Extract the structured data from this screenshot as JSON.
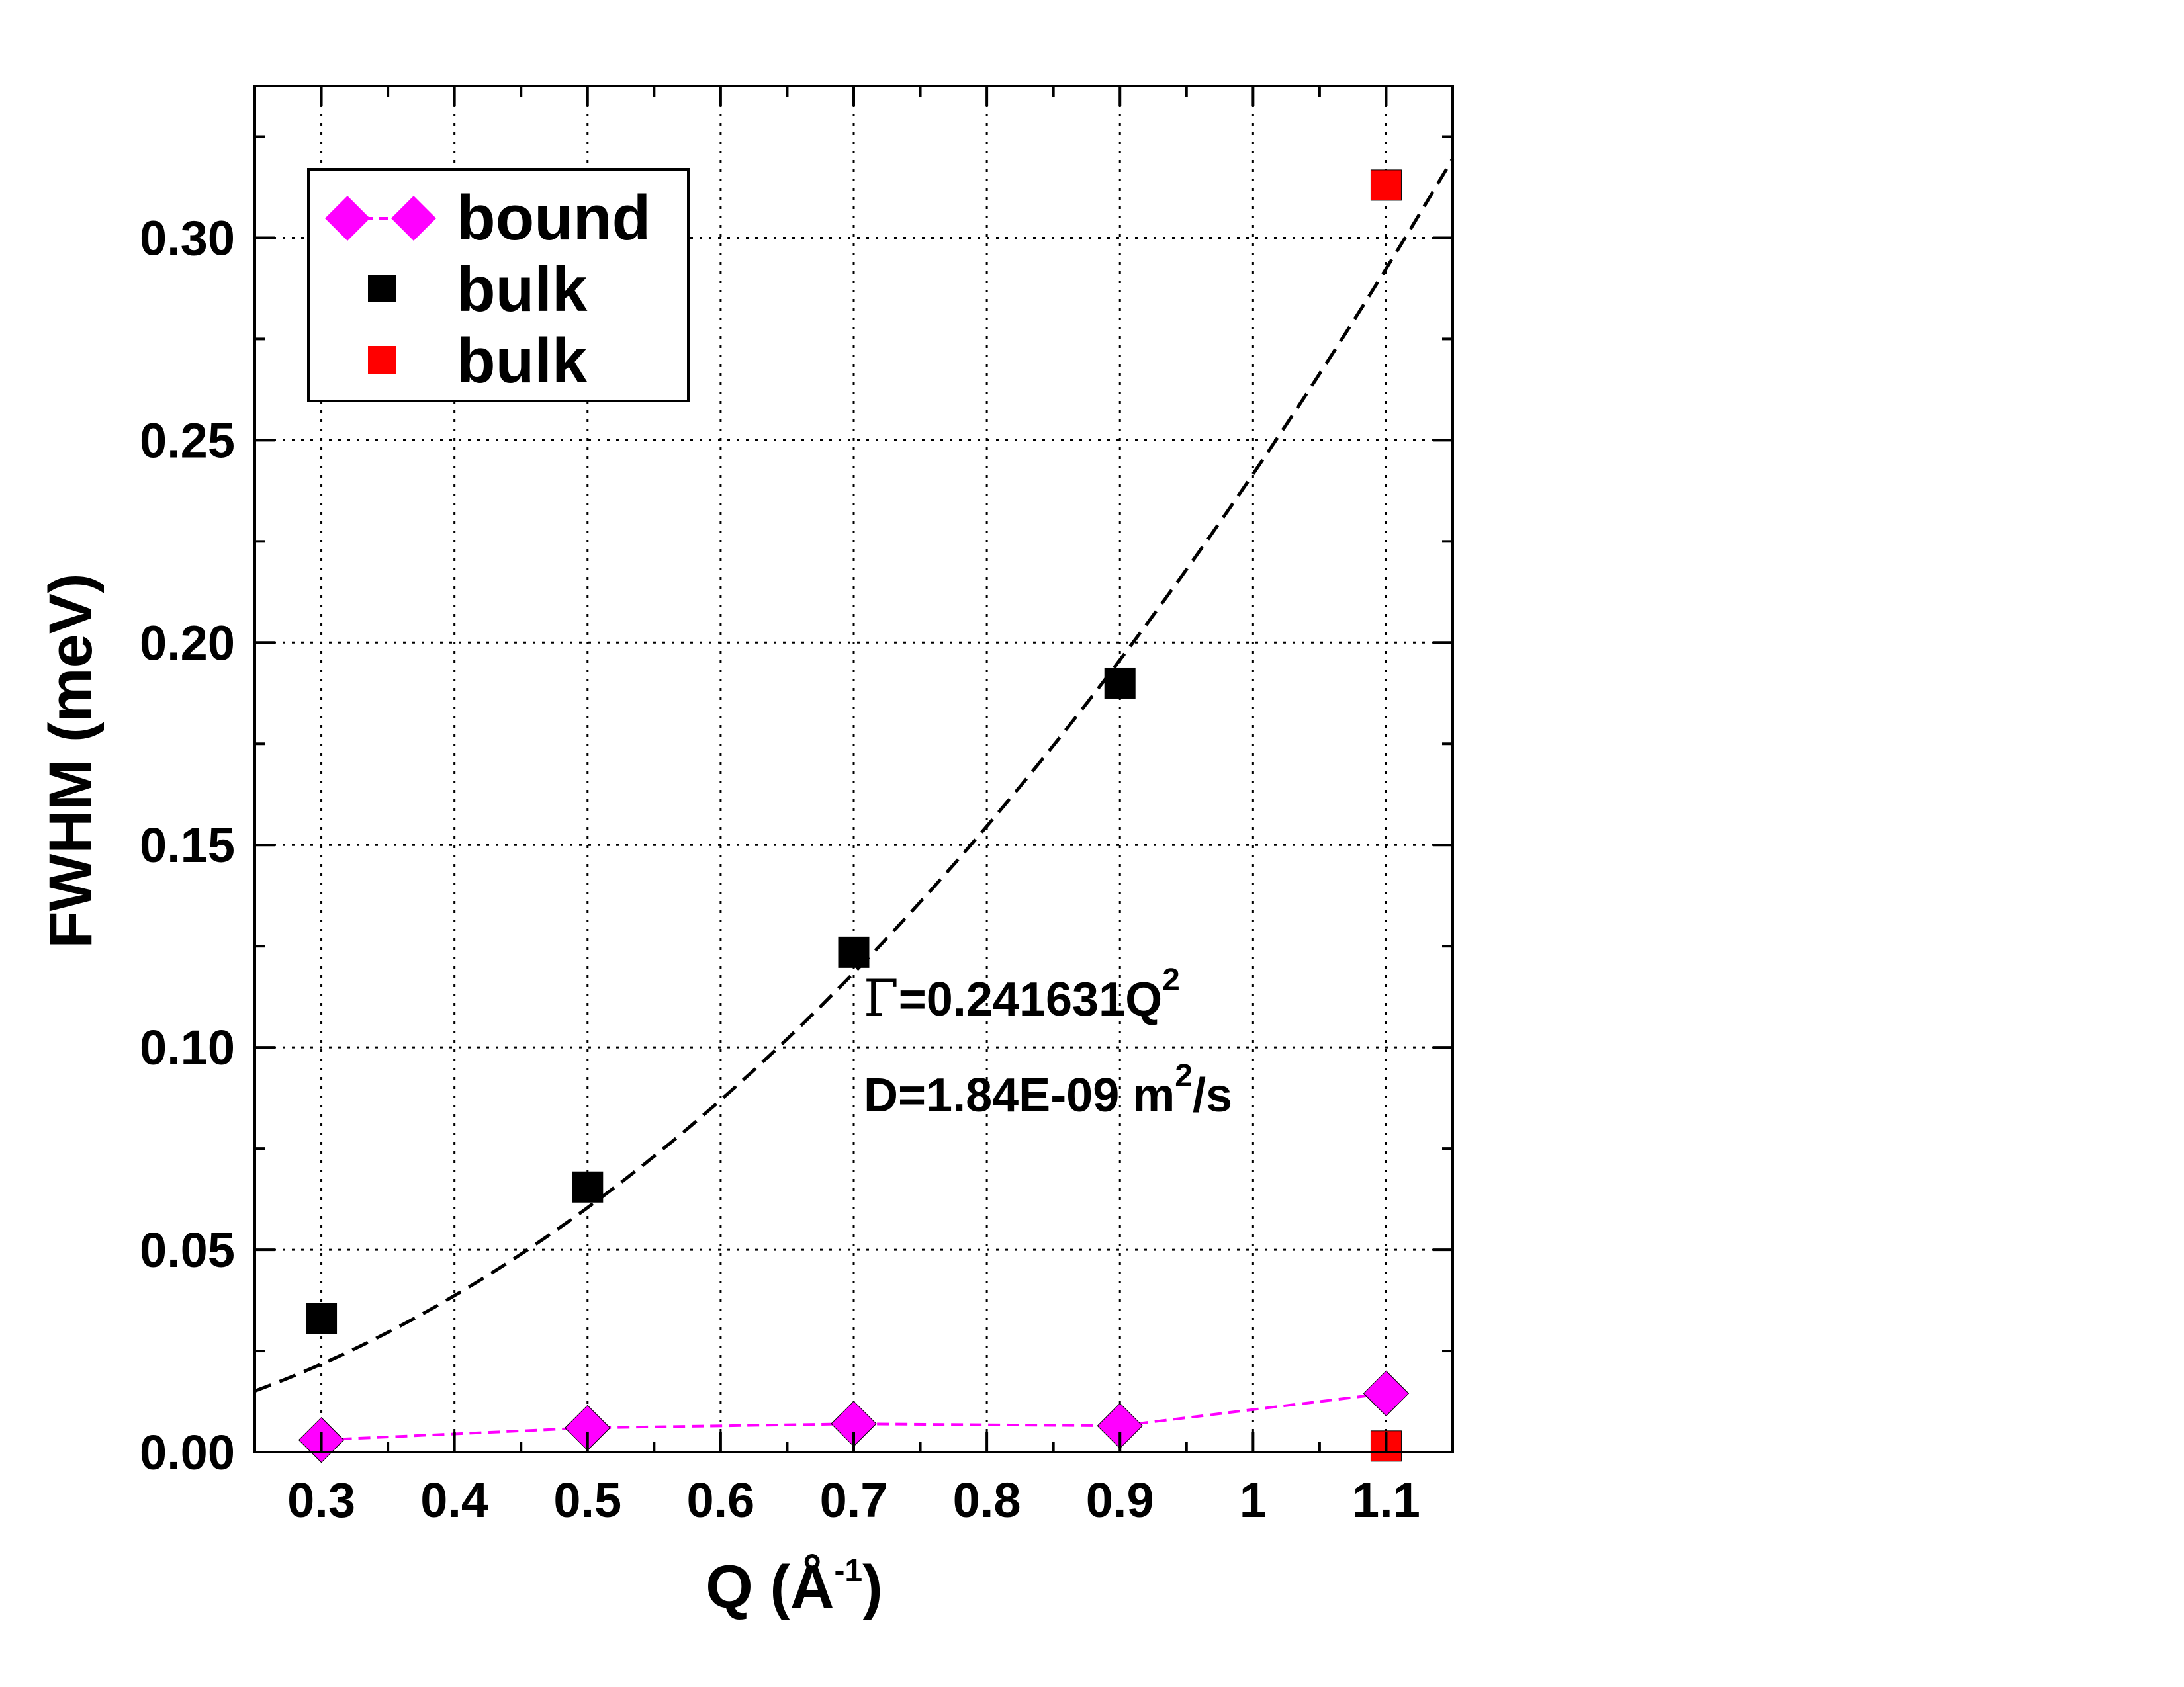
{
  "chart_data": {
    "type": "scatter",
    "xlabel": "Q (Å",
    "xlabel_sup": "-1",
    "xlabel_end": ")",
    "ylabel": "FWHM (meV)",
    "xlim": [
      0.25,
      1.15
    ],
    "ylim": [
      0.0,
      0.3375
    ],
    "x_ticks": [
      0.3,
      0.4,
      0.5,
      0.6,
      0.7,
      0.8,
      0.9,
      1.0,
      1.1
    ],
    "x_tick_labels": [
      "0.3",
      "0.4",
      "0.5",
      "0.6",
      "0.7",
      "0.8",
      "0.9",
      "1",
      "1.1"
    ],
    "y_ticks": [
      0.0,
      0.05,
      0.1,
      0.15,
      0.2,
      0.25,
      0.3
    ],
    "y_tick_labels": [
      "0.00",
      "0.05",
      "0.10",
      "0.15",
      "0.20",
      "0.25",
      "0.30"
    ],
    "grid": true,
    "legend_position": "top-left",
    "series": [
      {
        "name": "bound",
        "marker": "diamond",
        "line": "dashed",
        "color": "#ff00ff",
        "x": [
          0.3,
          0.5,
          0.7,
          0.9,
          1.1
        ],
        "y": [
          0.003,
          0.006,
          0.007,
          0.0065,
          0.0145
        ]
      },
      {
        "name": "bulk",
        "marker": "square",
        "line": "none",
        "color": "#000000",
        "x": [
          0.3,
          0.5,
          0.7,
          0.9
        ],
        "y": [
          0.033,
          0.0655,
          0.1235,
          0.19
        ]
      },
      {
        "name": "bulk",
        "marker": "square",
        "line": "none",
        "color": "#ff0000",
        "x": [
          1.1,
          1.1
        ],
        "y": [
          0.313,
          0.0015
        ]
      }
    ],
    "fit": {
      "coefficient": 0.241631,
      "color": "#000000",
      "line": "dashed"
    },
    "annotations": {
      "gamma_symbol": "Γ",
      "fit_text": "=0.241631Q",
      "fit_sup": "2",
      "diff_text": "D=1.84E-09 m",
      "diff_sup": "2",
      "diff_end": "/s"
    }
  }
}
